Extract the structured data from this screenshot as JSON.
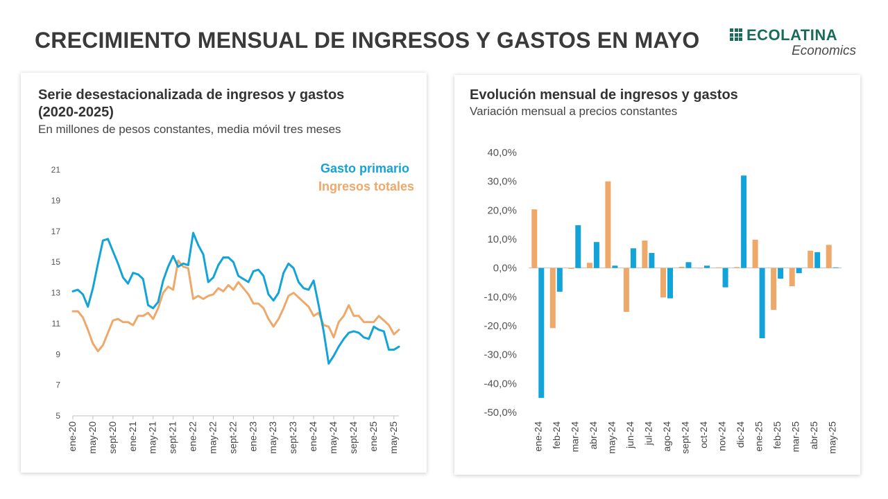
{
  "page": {
    "title": "CRECIMIENTO MENSUAL DE INGRESOS Y GASTOS EN MAYO"
  },
  "logo": {
    "name": "ECOLATINA",
    "sub": "Economics",
    "color": "#1b6b5a"
  },
  "colors": {
    "gasto": "#12a3d8",
    "ingresos": "#eea86a"
  },
  "chart_data": [
    {
      "type": "line",
      "title": "Serie desestacionalizada de ingresos y gastos (2020-2025)",
      "title_line1": "Serie desestacionalizada de ingresos y gastos",
      "title_line2": "(2020-2025)",
      "subtitle": "En millones de pesos constantes, media móvil tres meses",
      "xlabel": "",
      "ylabel": "",
      "ylim": [
        5,
        21
      ],
      "yticks": [
        "21",
        "19",
        "17",
        "15",
        "13",
        "11",
        "9",
        "7",
        "5"
      ],
      "xtick_labels": [
        "ene-20",
        "may-20",
        "sept-20",
        "ene-21",
        "may-21",
        "sept-21",
        "ene-22",
        "may-22",
        "sept-22",
        "ene-23",
        "may-23",
        "sept-23",
        "ene-24",
        "may-24",
        "sept-24",
        "ene-25",
        "may-25"
      ],
      "legend_position": "top-right",
      "grid": false,
      "series": [
        {
          "name": "Gasto primario",
          "values": [
            13.1,
            13.2,
            12.9,
            12.1,
            13.3,
            14.9,
            16.4,
            16.5,
            15.7,
            14.9,
            14.0,
            13.6,
            14.3,
            14.2,
            13.9,
            12.2,
            12.0,
            12.4,
            13.8,
            14.7,
            15.4,
            14.7,
            14.9,
            14.8,
            16.9,
            16.1,
            15.5,
            13.7,
            14.0,
            14.8,
            15.3,
            15.3,
            15.0,
            14.1,
            13.9,
            13.7,
            14.4,
            14.5,
            14.1,
            12.9,
            12.5,
            13.0,
            14.3,
            14.9,
            14.6,
            13.7,
            13.3,
            13.2,
            13.8,
            12.2,
            10.5,
            8.4,
            8.9,
            9.5,
            10.0,
            10.4,
            10.5,
            10.4,
            10.1,
            10.0,
            10.8,
            10.6,
            10.5,
            9.3,
            9.3,
            9.5
          ]
        },
        {
          "name": "Ingresos totales",
          "values": [
            11.8,
            11.8,
            11.4,
            10.6,
            9.7,
            9.2,
            9.6,
            10.4,
            11.2,
            11.3,
            11.1,
            11.1,
            10.9,
            11.5,
            11.5,
            11.7,
            11.3,
            12.0,
            13.0,
            13.4,
            13.2,
            15.1,
            14.7,
            14.6,
            12.6,
            12.8,
            12.6,
            12.8,
            12.9,
            13.3,
            13.1,
            13.5,
            13.2,
            13.7,
            13.3,
            12.9,
            12.3,
            12.3,
            12.0,
            11.3,
            10.8,
            11.3,
            12.0,
            12.8,
            13.0,
            12.7,
            12.4,
            12.1,
            11.5,
            11.7,
            10.9,
            10.8,
            10.1,
            11.1,
            11.5,
            12.2,
            11.5,
            11.5,
            11.1,
            11.1,
            11.1,
            11.5,
            11.2,
            10.9,
            10.3,
            10.6
          ]
        }
      ]
    },
    {
      "type": "bar",
      "title": "Evolución mensual de ingresos y gastos",
      "subtitle": "Variación mensual a precios constantes",
      "xlabel": "",
      "ylabel": "",
      "ylim": [
        -50,
        40
      ],
      "yticks": [
        "40,0%",
        "30,0%",
        "20,0%",
        "10,0%",
        "0,0%",
        "-10,0%",
        "-20,0%",
        "-30,0%",
        "-40,0%",
        "-50,0%"
      ],
      "categories": [
        "ene-24",
        "feb-24",
        "mar-24",
        "abr-24",
        "may-24",
        "jun-24",
        "jul-24",
        "ago-24",
        "sept-24",
        "oct-24",
        "nov-24",
        "dic-24",
        "ene-25",
        "feb-25",
        "mar-25",
        "abr-25",
        "may-25"
      ],
      "series": [
        {
          "name": "Ingresos totales",
          "values": [
            20.3,
            -20.8,
            -0.3,
            1.8,
            30.0,
            -15.2,
            9.5,
            -10.2,
            0.4,
            0.0,
            0.2,
            0.3,
            9.8,
            -14.5,
            -6.3,
            6.0,
            8.0
          ]
        },
        {
          "name": "Gasto primario",
          "values": [
            -45.0,
            -8.2,
            14.8,
            9.0,
            0.8,
            6.8,
            5.2,
            -10.5,
            2.0,
            0.8,
            -6.7,
            32.0,
            -24.3,
            -3.7,
            -1.8,
            5.5,
            0.2
          ]
        }
      ]
    }
  ]
}
